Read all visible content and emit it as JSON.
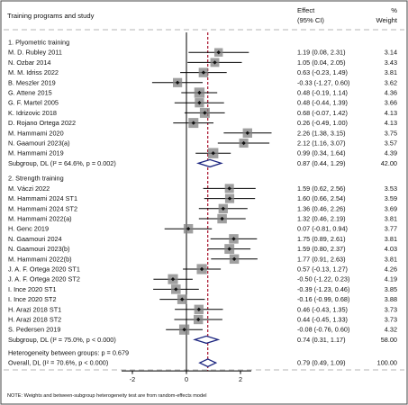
{
  "chart_data": {
    "type": "forest",
    "header": {
      "study_col": "Training programs and study",
      "effect_col": [
        "Effect",
        "(95% CI)"
      ],
      "weight_col": [
        "%",
        "Weight"
      ]
    },
    "x_ticks": [
      "-2",
      "0",
      "2"
    ],
    "x_range": [
      -3.3,
      4.1
    ],
    "null_value": 0,
    "overall_line": 0.79,
    "groups": [
      {
        "title": "1. Plyometric training",
        "studies": [
          {
            "label": "M. D. Rubley 2011",
            "effect": 1.19,
            "lo": 0.08,
            "hi": 2.31,
            "ci_text": "1.19 (0.08, 2.31)",
            "weight": "3.14",
            "w": 3.14
          },
          {
            "label": "N. Ozbar 2014",
            "effect": 1.05,
            "lo": 0.04,
            "hi": 2.05,
            "ci_text": "1.05 (0.04, 2.05)",
            "weight": "3.43",
            "w": 3.43
          },
          {
            "label": "M. M. Idriss 2022",
            "effect": 0.63,
            "lo": -0.23,
            "hi": 1.49,
            "ci_text": "0.63 (-0.23, 1.49)",
            "weight": "3.81",
            "w": 3.81
          },
          {
            "label": "B. Meszler 2019",
            "effect": -0.33,
            "lo": -1.27,
            "hi": 0.6,
            "ci_text": "-0.33 (-1.27, 0.60)",
            "weight": "3.62",
            "w": 3.62
          },
          {
            "label": "G. Attene 2015",
            "effect": 0.48,
            "lo": -0.19,
            "hi": 1.14,
            "ci_text": "0.48 (-0.19, 1.14)",
            "weight": "4.36",
            "w": 4.36
          },
          {
            "label": "G. F. Martel 2005",
            "effect": 0.48,
            "lo": -0.44,
            "hi": 1.39,
            "ci_text": "0.48 (-0.44, 1.39)",
            "weight": "3.66",
            "w": 3.66
          },
          {
            "label": "K. Idrizovic 2018",
            "effect": 0.68,
            "lo": -0.07,
            "hi": 1.42,
            "ci_text": "0.68 (-0.07, 1.42)",
            "weight": "4.13",
            "w": 4.13
          },
          {
            "label": "D. Rojano Ortega 2022",
            "effect": 0.26,
            "lo": -0.49,
            "hi": 1.0,
            "ci_text": "0.26 (-0.49, 1.00)",
            "weight": "4.13",
            "w": 4.13
          },
          {
            "label": "M. Hammami 2020",
            "effect": 2.26,
            "lo": 1.38,
            "hi": 3.15,
            "ci_text": "2.26 (1.38, 3.15)",
            "weight": "3.75",
            "w": 3.75
          },
          {
            "label": "N. Gaamouri 2023(a)",
            "effect": 2.12,
            "lo": 1.16,
            "hi": 3.07,
            "ci_text": "2.12 (1.16, 3.07)",
            "weight": "3.57",
            "w": 3.57
          },
          {
            "label": "M. Hammami 2019",
            "effect": 0.99,
            "lo": 0.34,
            "hi": 1.64,
            "ci_text": "0.99 (0.34, 1.64)",
            "weight": "4.39",
            "w": 4.39
          }
        ],
        "subgroup": {
          "label": "Subgroup, DL (I² = 64.6%, p = 0.002)",
          "effect": 0.87,
          "lo": 0.44,
          "hi": 1.29,
          "ci_text": "0.87 (0.44, 1.29)",
          "weight": "42.00"
        }
      },
      {
        "title": "2. Strength training",
        "studies": [
          {
            "label": "M. Váczi 2022",
            "effect": 1.59,
            "lo": 0.62,
            "hi": 2.56,
            "ci_text": "1.59 (0.62, 2.56)",
            "weight": "3.53",
            "w": 3.53
          },
          {
            "label": "M. Hammami 2024 ST1",
            "effect": 1.6,
            "lo": 0.66,
            "hi": 2.54,
            "ci_text": "1.60 (0.66, 2.54)",
            "weight": "3.59",
            "w": 3.59
          },
          {
            "label": "M. Hammami 2024 ST2",
            "effect": 1.36,
            "lo": 0.46,
            "hi": 2.26,
            "ci_text": "1.36 (0.46, 2.26)",
            "weight": "3.69",
            "w": 3.69
          },
          {
            "label": "M. Hammami 2022(a)",
            "effect": 1.32,
            "lo": 0.46,
            "hi": 2.19,
            "ci_text": "1.32 (0.46, 2.19)",
            "weight": "3.81",
            "w": 3.81
          },
          {
            "label": "H. Genc 2019",
            "effect": 0.07,
            "lo": -0.81,
            "hi": 0.94,
            "ci_text": "0.07 (-0.81, 0.94)",
            "weight": "3.77",
            "w": 3.77
          },
          {
            "label": "N. Gaamouri 2024",
            "effect": 1.75,
            "lo": 0.89,
            "hi": 2.61,
            "ci_text": "1.75 (0.89, 2.61)",
            "weight": "3.81",
            "w": 3.81
          },
          {
            "label": "N. Gaamouri 2023(b)",
            "effect": 1.59,
            "lo": 0.8,
            "hi": 2.37,
            "ci_text": "1.59 (0.80, 2.37)",
            "weight": "4.03",
            "w": 4.03
          },
          {
            "label": "M. Hammami 2022(b)",
            "effect": 1.77,
            "lo": 0.91,
            "hi": 2.63,
            "ci_text": "1.77 (0.91, 2.63)",
            "weight": "3.81",
            "w": 3.81
          },
          {
            "label": "J. A. F. Ortega 2020 ST1",
            "effect": 0.57,
            "lo": -0.13,
            "hi": 1.27,
            "ci_text": "0.57 (-0.13, 1.27)",
            "weight": "4.26",
            "w": 4.26
          },
          {
            "label": "J. A. F. Ortega 2020 ST2",
            "effect": -0.5,
            "lo": -1.22,
            "hi": 0.23,
            "ci_text": "-0.50 (-1.22, 0.23)",
            "weight": "4.19",
            "w": 4.19
          },
          {
            "label": "I. Ince 2020 ST1",
            "effect": -0.39,
            "lo": -1.23,
            "hi": 0.46,
            "ci_text": "-0.39 (-1.23, 0.46)",
            "weight": "3.85",
            "w": 3.85
          },
          {
            "label": "I. Ince 2020 ST2",
            "effect": -0.16,
            "lo": -0.99,
            "hi": 0.68,
            "ci_text": "-0.16 (-0.99, 0.68)",
            "weight": "3.88",
            "w": 3.88
          },
          {
            "label": "H. Arazi 2018 ST1",
            "effect": 0.46,
            "lo": -0.43,
            "hi": 1.35,
            "ci_text": "0.46 (-0.43, 1.35)",
            "weight": "3.73",
            "w": 3.73
          },
          {
            "label": "H. Arazi 2018 ST2",
            "effect": 0.44,
            "lo": -0.45,
            "hi": 1.33,
            "ci_text": "0.44 (-0.45, 1.33)",
            "weight": "3.73",
            "w": 3.73
          },
          {
            "label": "S. Pedersen 2019",
            "effect": -0.08,
            "lo": -0.76,
            "hi": 0.6,
            "ci_text": "-0.08 (-0.76, 0.60)",
            "weight": "4.32",
            "w": 4.32
          }
        ],
        "subgroup": {
          "label": "Subgroup, DL (I² = 75.0%, p < 0.000)",
          "effect": 0.74,
          "lo": 0.31,
          "hi": 1.17,
          "ci_text": "0.74 (0.31, 1.17)",
          "weight": "58.00"
        }
      }
    ],
    "heterogeneity_text": "Heterogeneity between groups: p = 0.679",
    "overall": {
      "label": "Overall, DL (I² = 70.6%, p < 0.000)",
      "effect": 0.79,
      "lo": 0.49,
      "hi": 1.09,
      "ci_text": "0.79 (0.49, 1.09)",
      "weight": "100.00"
    },
    "note": "NOTE: Weights and between-subgroup heterogeneity test are from random-effects model",
    "colors": {
      "marker": "#808080",
      "diamond": "#1a237e",
      "overall_line": "#a8102a",
      "text": "#111111",
      "dash": "#b5b5b5"
    }
  }
}
